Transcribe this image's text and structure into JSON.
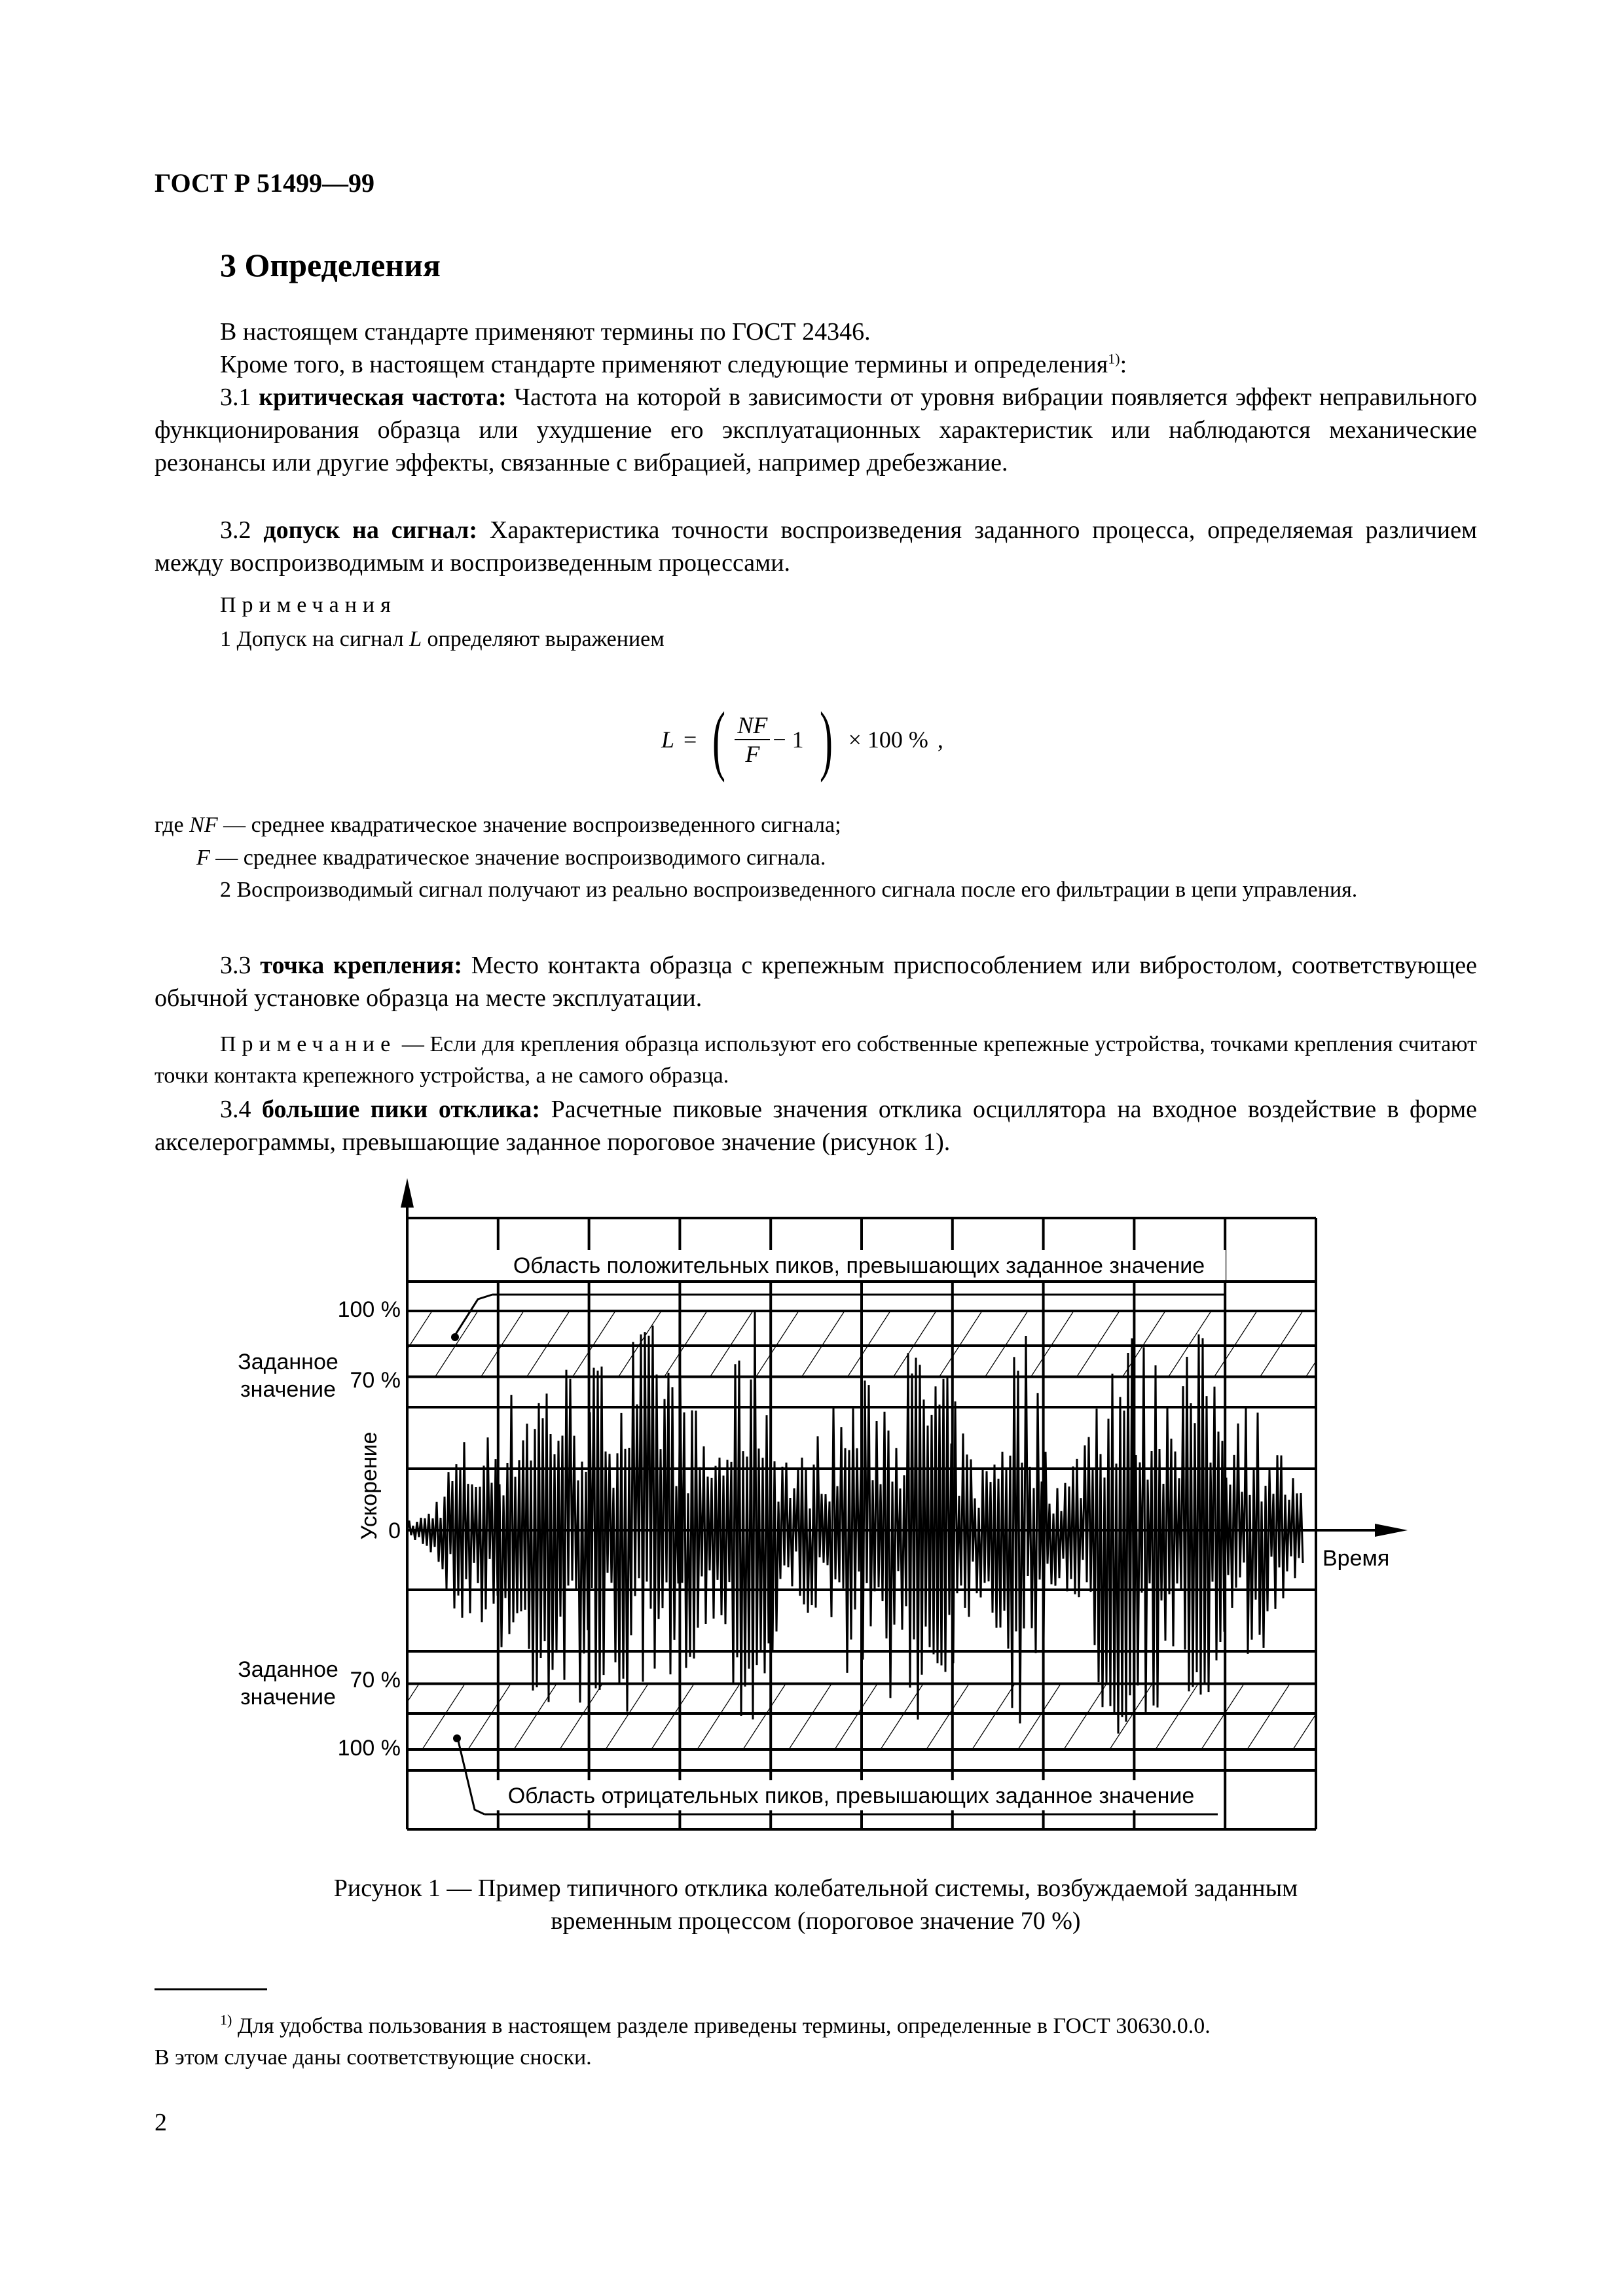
{
  "header": {
    "doc_id": "ГОСТ Р 51499—99"
  },
  "section": {
    "title": "3 Определения"
  },
  "paragraphs": {
    "p1": "В настоящем стандарте применяют термины по ГОСТ 24346.",
    "p2": "Кроме того, в настоящем стандарте применяют следующие термины и определения",
    "p2_sup": "1)",
    "p2_end": ":",
    "t31_num": "3.1 ",
    "t31_term": "критическая частота:",
    "t31_text": " Частота на которой в зависимости от уровня вибрации появляется эффект неправильного функционирования образца или ухудшение его эксплуатационных характеристик или наблюдаются механические резонансы или другие эффекты, связанные с вибрацией, например дребезжание.",
    "t32_num": "3.2 ",
    "t32_term": "допуск на сигнал:",
    "t32_text": " Характеристика точности воспроизведения заданного процесса, определяемая различием между воспроизводимым и воспроизведенным процессами.",
    "notes_title": "Примечания",
    "note1_a": "1 Допуск на сигнал ",
    "note1_var": "L",
    "note1_b": " определяют выражением",
    "formula": {
      "lhs": "L",
      "eq": "=",
      "num": "NF",
      "den": "F",
      "minus": "− 1",
      "times": "× 100 %",
      "comma": ","
    },
    "where_a": "где ",
    "where_nf": "NF",
    "where_nf_text": " — среднее квадратическое значение воспроизведенного сигнала;",
    "where_f": "F",
    "where_f_text": " — среднее квадратическое значение воспроизводимого сигнала.",
    "note2": "2 Воспроизводимый сигнал получают из реально воспроизведенного сигнала после его фильтрации в цепи управления.",
    "t33_num": "3.3 ",
    "t33_term": "точка крепления:",
    "t33_text": " Место контакта образца с крепежным приспособлением или вибростолом, соответствующее обычной установке образца на месте эксплуатации.",
    "note33_label": "Примечание",
    "note33_text": " — Если для крепления образца используют его собственные крепежные устройства, точками крепления считают точки контакта крепежного устройства, а не самого образца.",
    "t34_num": "3.4 ",
    "t34_term": "большие пики отклика:",
    "t34_text": " Расчетные пиковые значения отклика осциллятора на входное воздействие в форме акселерограммы, превышающие заданное пороговое значение (рисунок 1)."
  },
  "chart_data": {
    "type": "line",
    "ylabel": "Ускорение",
    "xlabel": "Время",
    "y_ticks": [
      "100 %",
      "70 %",
      "0",
      "70 %",
      "100 %"
    ],
    "threshold_label": "Заданное значение",
    "threshold_percent": 70,
    "max_percent": 100,
    "ylim_percent": [
      -100,
      100
    ],
    "grid": true,
    "hatched_bands_percent": [
      [
        70,
        100
      ],
      [
        -100,
        -70
      ]
    ],
    "annotation_top": "Область положительных пиков, превышающих заданное значение",
    "annotation_bottom": "Область отрицательных пиков, превышающих заданное значение",
    "line_color": "#000000"
  },
  "caption": {
    "line1": "Рисунок 1 — Пример типичного отклика колебательной системы, возбуждаемой заданным",
    "line2": "временным процессом (пороговое значение 70 %)"
  },
  "footnote": {
    "mark": "1)",
    "text1": " Для удобства пользования в настоящем разделе приведены термины, определенные в ГОСТ 30630.0.0.",
    "text2": "В этом случае даны соответствующие сноски."
  },
  "page_number": "2"
}
